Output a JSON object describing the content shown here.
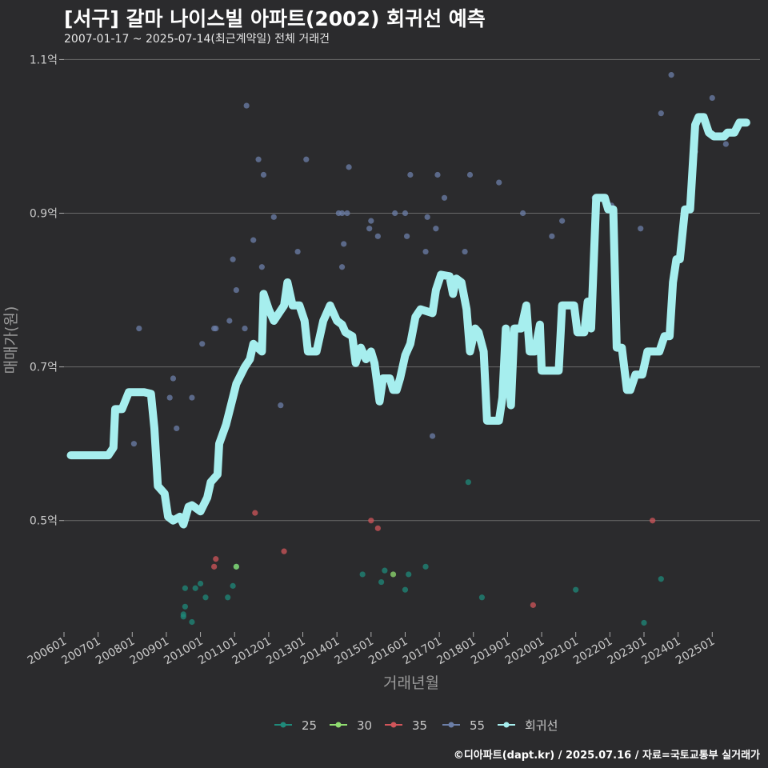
{
  "header": {
    "title": "[서구] 갈마 나이스빌 아파트(2002) 회귀선 예측",
    "subtitle": "2007-01-17 ~ 2025-07-14(최근계약일) 전체 거래건"
  },
  "footer": {
    "credit": "©디아파트(dapt.kr) / 2025.07.16 / 자료=국토교통부 실거래가"
  },
  "colors": {
    "background": "#2b2b2d",
    "grid": "#6a6a6a",
    "text": "#c8c8c8",
    "s25": "#1f8a7a",
    "s30": "#90dd70",
    "s35": "#d0555a",
    "s55": "#6c7fa8",
    "trend": "#a6eeee"
  },
  "chart_data": {
    "type": "scatter",
    "title": "[서구] 갈마 나이스빌 아파트(2002) 회귀선 예측",
    "xlabel": "거래년월",
    "ylabel": "매매가(원)",
    "ylim": [
      0.355,
      1.115
    ],
    "xlim": [
      2006.0,
      2026.4
    ],
    "yticks": [
      0.5,
      0.7,
      0.9,
      1.1
    ],
    "ytick_labels": [
      "0.5억",
      "0.7억",
      "0.9억",
      "1.1억"
    ],
    "xticks": [
      2006,
      2007,
      2008,
      2009,
      2010,
      2011,
      2012,
      2013,
      2014,
      2015,
      2016,
      2017,
      2018,
      2019,
      2020,
      2021,
      2022,
      2023,
      2024,
      2025
    ],
    "xtick_labels": [
      "200601",
      "200701",
      "200801",
      "200901",
      "201001",
      "201101",
      "201201",
      "201301",
      "201401",
      "201501",
      "201601",
      "201701",
      "201801",
      "201901",
      "202001",
      "202101",
      "202201",
      "202301",
      "202401",
      "202501"
    ],
    "legend": {
      "position": "bottom",
      "entries": [
        "25",
        "30",
        "35",
        "55",
        "회귀선"
      ]
    },
    "series": [
      {
        "name": "25",
        "points": [
          [
            2009.55,
            0.412
          ],
          [
            2009.5,
            0.378
          ],
          [
            2009.55,
            0.388
          ],
          [
            2009.5,
            0.375
          ],
          [
            2009.75,
            0.368
          ],
          [
            2009.85,
            0.412
          ],
          [
            2010.0,
            0.418
          ],
          [
            2010.15,
            0.4
          ],
          [
            2010.8,
            0.4
          ],
          [
            2010.95,
            0.415
          ],
          [
            2011.05,
            0.44
          ],
          [
            2014.75,
            0.43
          ],
          [
            2015.3,
            0.42
          ],
          [
            2015.4,
            0.435
          ],
          [
            2016.0,
            0.41
          ],
          [
            2016.1,
            0.43
          ],
          [
            2016.6,
            0.44
          ],
          [
            2017.85,
            0.55
          ],
          [
            2018.25,
            0.4
          ],
          [
            2021.0,
            0.41
          ],
          [
            2023.0,
            0.367
          ],
          [
            2023.5,
            0.424
          ]
        ]
      },
      {
        "name": "30",
        "points": [
          [
            2011.05,
            0.44
          ],
          [
            2015.65,
            0.43
          ]
        ]
      },
      {
        "name": "35",
        "points": [
          [
            2010.4,
            0.44
          ],
          [
            2010.45,
            0.45
          ],
          [
            2011.6,
            0.51
          ],
          [
            2012.45,
            0.46
          ],
          [
            2015.0,
            0.5
          ],
          [
            2015.2,
            0.49
          ],
          [
            2019.75,
            0.39
          ],
          [
            2023.25,
            0.5
          ]
        ]
      },
      {
        "name": "55",
        "points": [
          [
            2008.05,
            0.6
          ],
          [
            2008.2,
            0.75
          ],
          [
            2009.1,
            0.66
          ],
          [
            2009.2,
            0.685
          ],
          [
            2009.3,
            0.62
          ],
          [
            2009.75,
            0.66
          ],
          [
            2010.05,
            0.73
          ],
          [
            2010.4,
            0.75
          ],
          [
            2010.45,
            0.75
          ],
          [
            2010.85,
            0.76
          ],
          [
            2010.95,
            0.84
          ],
          [
            2011.05,
            0.8
          ],
          [
            2011.3,
            0.75
          ],
          [
            2011.35,
            1.04
          ],
          [
            2011.55,
            0.865
          ],
          [
            2011.7,
            0.97
          ],
          [
            2011.8,
            0.83
          ],
          [
            2011.85,
            0.95
          ],
          [
            2012.15,
            0.895
          ],
          [
            2012.35,
            0.65
          ],
          [
            2012.85,
            0.85
          ],
          [
            2013.1,
            0.97
          ],
          [
            2014.05,
            0.9
          ],
          [
            2014.15,
            0.9
          ],
          [
            2014.15,
            0.83
          ],
          [
            2014.2,
            0.86
          ],
          [
            2014.3,
            0.9
          ],
          [
            2014.35,
            0.96
          ],
          [
            2014.95,
            0.88
          ],
          [
            2015.0,
            0.89
          ],
          [
            2015.2,
            0.87
          ],
          [
            2015.7,
            0.9
          ],
          [
            2016.0,
            0.9
          ],
          [
            2016.05,
            0.87
          ],
          [
            2016.15,
            0.95
          ],
          [
            2016.6,
            0.85
          ],
          [
            2016.65,
            0.895
          ],
          [
            2016.8,
            0.61
          ],
          [
            2016.9,
            0.88
          ],
          [
            2016.95,
            0.95
          ],
          [
            2017.15,
            0.92
          ],
          [
            2017.75,
            0.85
          ],
          [
            2017.9,
            0.95
          ],
          [
            2018.75,
            0.94
          ],
          [
            2019.45,
            0.9
          ],
          [
            2020.3,
            0.87
          ],
          [
            2020.6,
            0.89
          ],
          [
            2021.55,
            0.92
          ],
          [
            2022.05,
            0.91
          ],
          [
            2022.9,
            0.88
          ],
          [
            2023.5,
            1.03
          ],
          [
            2023.8,
            1.08
          ],
          [
            2024.5,
            0.98
          ],
          [
            2025.0,
            1.05
          ],
          [
            2025.4,
            0.99
          ]
        ]
      }
    ],
    "trendline": {
      "name": "회귀선",
      "points": [
        [
          2006.2,
          0.585
        ],
        [
          2007.3,
          0.585
        ],
        [
          2007.45,
          0.595
        ],
        [
          2007.5,
          0.645
        ],
        [
          2007.7,
          0.645
        ],
        [
          2007.9,
          0.667
        ],
        [
          2008.35,
          0.667
        ],
        [
          2008.55,
          0.665
        ],
        [
          2008.65,
          0.62
        ],
        [
          2008.75,
          0.545
        ],
        [
          2008.95,
          0.535
        ],
        [
          2009.05,
          0.505
        ],
        [
          2009.2,
          0.5
        ],
        [
          2009.4,
          0.505
        ],
        [
          2009.5,
          0.495
        ],
        [
          2009.65,
          0.518
        ],
        [
          2009.75,
          0.52
        ],
        [
          2010.0,
          0.512
        ],
        [
          2010.2,
          0.53
        ],
        [
          2010.3,
          0.55
        ],
        [
          2010.5,
          0.56
        ],
        [
          2010.55,
          0.6
        ],
        [
          2010.75,
          0.625
        ],
        [
          2010.95,
          0.66
        ],
        [
          2011.05,
          0.678
        ],
        [
          2011.3,
          0.7
        ],
        [
          2011.45,
          0.71
        ],
        [
          2011.55,
          0.73
        ],
        [
          2011.8,
          0.72
        ],
        [
          2011.85,
          0.795
        ],
        [
          2012.0,
          0.775
        ],
        [
          2012.15,
          0.76
        ],
        [
          2012.3,
          0.77
        ],
        [
          2012.45,
          0.78
        ],
        [
          2012.55,
          0.81
        ],
        [
          2012.7,
          0.78
        ],
        [
          2012.9,
          0.78
        ],
        [
          2013.05,
          0.76
        ],
        [
          2013.15,
          0.72
        ],
        [
          2013.4,
          0.72
        ],
        [
          2013.6,
          0.76
        ],
        [
          2013.8,
          0.78
        ],
        [
          2014.0,
          0.76
        ],
        [
          2014.15,
          0.755
        ],
        [
          2014.25,
          0.745
        ],
        [
          2014.45,
          0.74
        ],
        [
          2014.55,
          0.705
        ],
        [
          2014.7,
          0.725
        ],
        [
          2014.85,
          0.71
        ],
        [
          2015.0,
          0.72
        ],
        [
          2015.1,
          0.705
        ],
        [
          2015.25,
          0.655
        ],
        [
          2015.35,
          0.685
        ],
        [
          2015.55,
          0.685
        ],
        [
          2015.65,
          0.67
        ],
        [
          2015.75,
          0.67
        ],
        [
          2015.85,
          0.685
        ],
        [
          2016.0,
          0.715
        ],
        [
          2016.15,
          0.73
        ],
        [
          2016.3,
          0.765
        ],
        [
          2016.45,
          0.775
        ],
        [
          2016.8,
          0.77
        ],
        [
          2016.9,
          0.8
        ],
        [
          2017.05,
          0.82
        ],
        [
          2017.3,
          0.818
        ],
        [
          2017.4,
          0.795
        ],
        [
          2017.5,
          0.815
        ],
        [
          2017.65,
          0.81
        ],
        [
          2017.8,
          0.775
        ],
        [
          2017.9,
          0.72
        ],
        [
          2018.05,
          0.75
        ],
        [
          2018.15,
          0.745
        ],
        [
          2018.3,
          0.72
        ],
        [
          2018.4,
          0.63
        ],
        [
          2018.75,
          0.63
        ],
        [
          2018.85,
          0.66
        ],
        [
          2018.95,
          0.75
        ],
        [
          2019.1,
          0.65
        ],
        [
          2019.2,
          0.75
        ],
        [
          2019.4,
          0.75
        ],
        [
          2019.55,
          0.78
        ],
        [
          2019.65,
          0.72
        ],
        [
          2019.8,
          0.72
        ],
        [
          2019.95,
          0.755
        ],
        [
          2020.0,
          0.695
        ],
        [
          2020.5,
          0.695
        ],
        [
          2020.6,
          0.78
        ],
        [
          2020.95,
          0.78
        ],
        [
          2021.05,
          0.745
        ],
        [
          2021.25,
          0.745
        ],
        [
          2021.35,
          0.785
        ],
        [
          2021.45,
          0.75
        ],
        [
          2021.6,
          0.92
        ],
        [
          2021.85,
          0.92
        ],
        [
          2021.95,
          0.905
        ],
        [
          2022.1,
          0.905
        ],
        [
          2022.2,
          0.725
        ],
        [
          2022.35,
          0.725
        ],
        [
          2022.5,
          0.67
        ],
        [
          2022.6,
          0.67
        ],
        [
          2022.75,
          0.69
        ],
        [
          2022.95,
          0.69
        ],
        [
          2023.1,
          0.72
        ],
        [
          2023.45,
          0.72
        ],
        [
          2023.6,
          0.74
        ],
        [
          2023.75,
          0.74
        ],
        [
          2023.85,
          0.81
        ],
        [
          2023.95,
          0.84
        ],
        [
          2024.05,
          0.84
        ],
        [
          2024.2,
          0.905
        ],
        [
          2024.35,
          0.905
        ],
        [
          2024.5,
          1.015
        ],
        [
          2024.6,
          1.025
        ],
        [
          2024.75,
          1.025
        ],
        [
          2024.9,
          1.005
        ],
        [
          2025.05,
          1.0
        ],
        [
          2025.35,
          1.0
        ],
        [
          2025.45,
          1.005
        ],
        [
          2025.65,
          1.005
        ],
        [
          2025.8,
          1.018
        ],
        [
          2026.0,
          1.018
        ]
      ]
    }
  }
}
